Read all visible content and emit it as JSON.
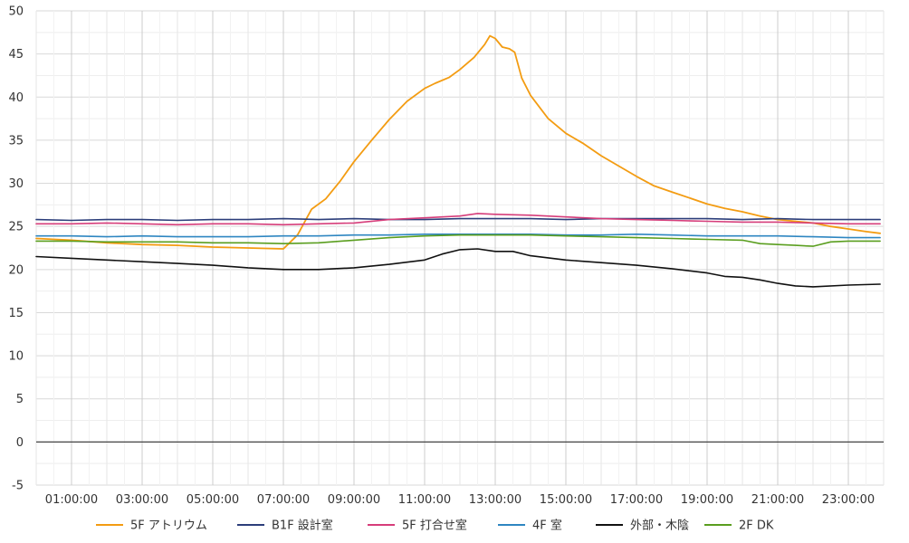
{
  "chart_data": {
    "type": "line",
    "title": "",
    "xlabel": "",
    "ylabel": "",
    "ylim": [
      -5,
      50
    ],
    "yticks": [
      -5,
      0,
      5,
      10,
      15,
      20,
      25,
      30,
      35,
      40,
      45,
      50
    ],
    "xlim": [
      0,
      24
    ],
    "xticks": [
      {
        "hour": 1,
        "label": "01:00:00"
      },
      {
        "hour": 3,
        "label": "03:00:00"
      },
      {
        "hour": 5,
        "label": "05:00:00"
      },
      {
        "hour": 7,
        "label": "07:00:00"
      },
      {
        "hour": 9,
        "label": "09:00:00"
      },
      {
        "hour": 11,
        "label": "11:00:00"
      },
      {
        "hour": 13,
        "label": "13:00:00"
      },
      {
        "hour": 15,
        "label": "15:00:00"
      },
      {
        "hour": 17,
        "label": "17:00:00"
      },
      {
        "hour": 19,
        "label": "19:00:00"
      },
      {
        "hour": 21,
        "label": "21:00:00"
      },
      {
        "hour": 23,
        "label": "23:00:00"
      }
    ],
    "grid": true,
    "legend_position": "bottom",
    "series": [
      {
        "name": "5F アトリウム",
        "color": "#f39c12",
        "points": [
          [
            0,
            23.6
          ],
          [
            1,
            23.4
          ],
          [
            2,
            23.1
          ],
          [
            3,
            22.9
          ],
          [
            4,
            22.8
          ],
          [
            5,
            22.6
          ],
          [
            6,
            22.5
          ],
          [
            7,
            22.4
          ],
          [
            7.4,
            24.0
          ],
          [
            7.8,
            27.0
          ],
          [
            8.2,
            28.2
          ],
          [
            8.6,
            30.2
          ],
          [
            9,
            32.5
          ],
          [
            9.5,
            35.0
          ],
          [
            10,
            37.4
          ],
          [
            10.5,
            39.5
          ],
          [
            11,
            41.0
          ],
          [
            11.3,
            41.6
          ],
          [
            11.7,
            42.3
          ],
          [
            12,
            43.2
          ],
          [
            12.4,
            44.6
          ],
          [
            12.7,
            46.1
          ],
          [
            12.85,
            47.1
          ],
          [
            13,
            46.8
          ],
          [
            13.2,
            45.8
          ],
          [
            13.4,
            45.6
          ],
          [
            13.55,
            45.2
          ],
          [
            13.75,
            42.2
          ],
          [
            14,
            40.2
          ],
          [
            14.5,
            37.5
          ],
          [
            15,
            35.8
          ],
          [
            15.5,
            34.6
          ],
          [
            16,
            33.2
          ],
          [
            16.5,
            32.0
          ],
          [
            17,
            30.8
          ],
          [
            17.5,
            29.7
          ],
          [
            18,
            29.0
          ],
          [
            18.5,
            28.3
          ],
          [
            19,
            27.6
          ],
          [
            19.5,
            27.1
          ],
          [
            20,
            26.7
          ],
          [
            20.5,
            26.2
          ],
          [
            21,
            25.8
          ],
          [
            21.5,
            25.6
          ],
          [
            22,
            25.4
          ],
          [
            22.5,
            25.0
          ],
          [
            23,
            24.7
          ],
          [
            23.5,
            24.4
          ],
          [
            23.9,
            24.2
          ]
        ]
      },
      {
        "name": "B1F 設計室",
        "color": "#2c3e7a",
        "points": [
          [
            0,
            25.8
          ],
          [
            1,
            25.7
          ],
          [
            2,
            25.8
          ],
          [
            3,
            25.8
          ],
          [
            4,
            25.7
          ],
          [
            5,
            25.8
          ],
          [
            6,
            25.8
          ],
          [
            7,
            25.9
          ],
          [
            8,
            25.8
          ],
          [
            9,
            25.9
          ],
          [
            10,
            25.8
          ],
          [
            11,
            25.8
          ],
          [
            12,
            25.9
          ],
          [
            13,
            25.9
          ],
          [
            14,
            25.9
          ],
          [
            15,
            25.8
          ],
          [
            16,
            25.9
          ],
          [
            17,
            25.9
          ],
          [
            18,
            25.9
          ],
          [
            19,
            25.9
          ],
          [
            20,
            25.8
          ],
          [
            21,
            25.9
          ],
          [
            22,
            25.8
          ],
          [
            23,
            25.8
          ],
          [
            23.9,
            25.8
          ]
        ]
      },
      {
        "name": "5F 打合せ室",
        "color": "#d63d7a",
        "points": [
          [
            0,
            25.3
          ],
          [
            1,
            25.3
          ],
          [
            2,
            25.4
          ],
          [
            3,
            25.3
          ],
          [
            4,
            25.2
          ],
          [
            5,
            25.3
          ],
          [
            6,
            25.3
          ],
          [
            7,
            25.2
          ],
          [
            8,
            25.3
          ],
          [
            9,
            25.4
          ],
          [
            10,
            25.8
          ],
          [
            11,
            26.0
          ],
          [
            12,
            26.2
          ],
          [
            12.5,
            26.5
          ],
          [
            13,
            26.4
          ],
          [
            14,
            26.3
          ],
          [
            15,
            26.1
          ],
          [
            16,
            25.9
          ],
          [
            17,
            25.8
          ],
          [
            18,
            25.7
          ],
          [
            19,
            25.6
          ],
          [
            20,
            25.5
          ],
          [
            21,
            25.5
          ],
          [
            22,
            25.4
          ],
          [
            23,
            25.3
          ],
          [
            23.9,
            25.3
          ]
        ]
      },
      {
        "name": "4F 室",
        "color": "#2e86c1",
        "points": [
          [
            0,
            23.9
          ],
          [
            1,
            23.9
          ],
          [
            2,
            23.8
          ],
          [
            3,
            23.9
          ],
          [
            4,
            23.8
          ],
          [
            5,
            23.8
          ],
          [
            6,
            23.8
          ],
          [
            7,
            23.9
          ],
          [
            8,
            23.9
          ],
          [
            9,
            24.0
          ],
          [
            10,
            24.0
          ],
          [
            11,
            24.1
          ],
          [
            12,
            24.1
          ],
          [
            13,
            24.1
          ],
          [
            14,
            24.1
          ],
          [
            15,
            24.0
          ],
          [
            16,
            24.0
          ],
          [
            17,
            24.1
          ],
          [
            18,
            24.0
          ],
          [
            19,
            23.9
          ],
          [
            20,
            23.9
          ],
          [
            21,
            23.9
          ],
          [
            22,
            23.8
          ],
          [
            23,
            23.7
          ],
          [
            23.9,
            23.7
          ]
        ]
      },
      {
        "name": "外部・木陰",
        "color": "#111111",
        "points": [
          [
            0,
            21.5
          ],
          [
            1,
            21.3
          ],
          [
            2,
            21.1
          ],
          [
            3,
            20.9
          ],
          [
            4,
            20.7
          ],
          [
            5,
            20.5
          ],
          [
            6,
            20.2
          ],
          [
            7,
            20.0
          ],
          [
            8,
            20.0
          ],
          [
            9,
            20.2
          ],
          [
            10,
            20.6
          ],
          [
            11,
            21.1
          ],
          [
            11.5,
            21.8
          ],
          [
            12,
            22.3
          ],
          [
            12.5,
            22.4
          ],
          [
            13,
            22.1
          ],
          [
            13.5,
            22.1
          ],
          [
            14,
            21.6
          ],
          [
            15,
            21.1
          ],
          [
            16,
            20.8
          ],
          [
            17,
            20.5
          ],
          [
            18,
            20.1
          ],
          [
            19,
            19.6
          ],
          [
            19.5,
            19.2
          ],
          [
            20,
            19.1
          ],
          [
            20.5,
            18.8
          ],
          [
            21,
            18.4
          ],
          [
            21.5,
            18.1
          ],
          [
            22,
            18.0
          ],
          [
            23,
            18.2
          ],
          [
            23.9,
            18.3
          ]
        ]
      },
      {
        "name": "2F DK",
        "color": "#5a9e1f",
        "points": [
          [
            0,
            23.3
          ],
          [
            1,
            23.3
          ],
          [
            2,
            23.2
          ],
          [
            3,
            23.2
          ],
          [
            4,
            23.2
          ],
          [
            5,
            23.1
          ],
          [
            6,
            23.1
          ],
          [
            7,
            23.0
          ],
          [
            8,
            23.1
          ],
          [
            9,
            23.4
          ],
          [
            10,
            23.7
          ],
          [
            11,
            23.9
          ],
          [
            12,
            24.0
          ],
          [
            13,
            24.0
          ],
          [
            14,
            24.0
          ],
          [
            15,
            23.9
          ],
          [
            16,
            23.8
          ],
          [
            17,
            23.7
          ],
          [
            18,
            23.6
          ],
          [
            19,
            23.5
          ],
          [
            20,
            23.4
          ],
          [
            20.5,
            23.0
          ],
          [
            21,
            22.9
          ],
          [
            21.5,
            22.8
          ],
          [
            22,
            22.7
          ],
          [
            22.5,
            23.2
          ],
          [
            23,
            23.3
          ],
          [
            23.9,
            23.3
          ]
        ]
      }
    ]
  }
}
